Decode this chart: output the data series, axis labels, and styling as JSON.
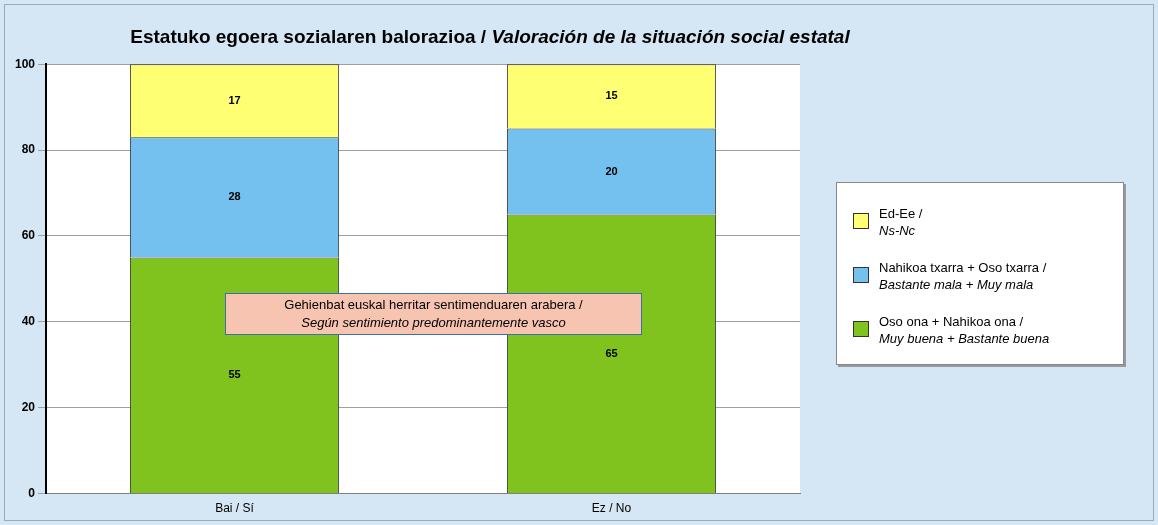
{
  "chart_data": {
    "type": "bar",
    "title": "Estatuko egoera sozialaren balorazioa / Valoración de la situación social estatal",
    "categories": [
      "Bai / Sí",
      "Ez / No"
    ],
    "series": [
      {
        "name": "Oso ona + Nahikoa ona / Muy buena + Bastante buena",
        "color": "#80c31f",
        "values": [
          55,
          65
        ]
      },
      {
        "name": "Nahikoa txarra + Oso txarra / Bastante mala + Muy mala",
        "color": "#74c1f0",
        "values": [
          28,
          20
        ]
      },
      {
        "name": "Ed-Ee / Ns-Nc",
        "color": "#ffff73",
        "values": [
          17,
          15
        ]
      }
    ],
    "stacked": true,
    "ylim": [
      0,
      100
    ],
    "yticks": [
      0,
      20,
      40,
      60,
      80,
      100
    ],
    "grid": "y",
    "legend": "right",
    "data_labels": true,
    "annotations": [
      "Gehienbat euskal herritar sentimenduaren arabera / Según sentimiento predominantemente vasco"
    ]
  }
}
